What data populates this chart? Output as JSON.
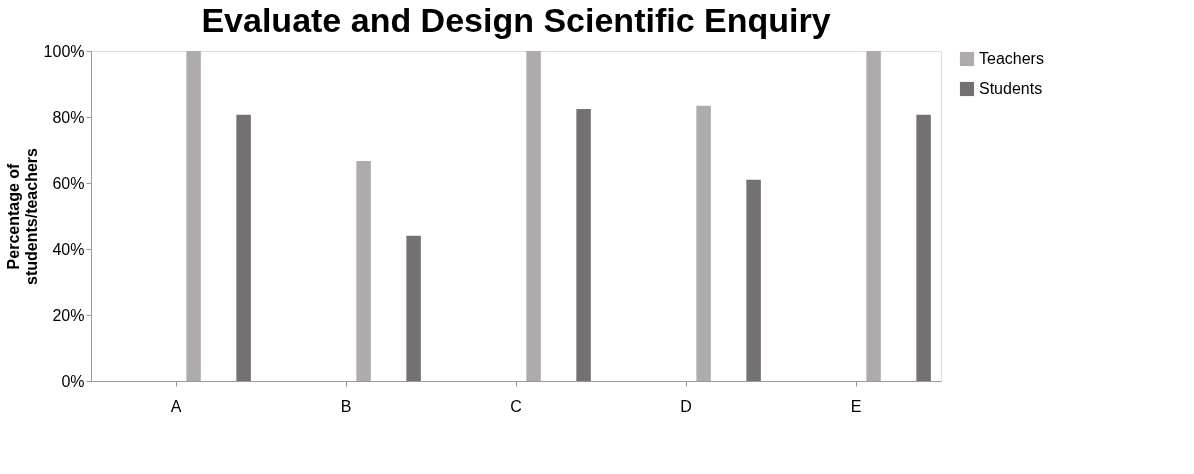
{
  "chart_data": {
    "type": "bar",
    "title": "Evaluate and Design Scientific Enquiry",
    "ylabel": "Percentage of\nstudents/teachers",
    "categories": [
      "A",
      "B",
      "C",
      "D",
      "E"
    ],
    "series": [
      {
        "name": "Teachers",
        "color": "#afabab",
        "values": [
          100,
          66.7,
          100,
          83.4,
          100
        ]
      },
      {
        "name": "Students",
        "color": "#767171",
        "values": [
          80.7,
          44.0,
          82.4,
          61.0,
          80.7
        ]
      }
    ],
    "ylim": [
      0,
      100
    ],
    "yticks": [
      {
        "value": 0,
        "label": "0%"
      },
      {
        "value": 20,
        "label": "20%"
      },
      {
        "value": 40,
        "label": "40%"
      },
      {
        "value": 60,
        "label": "60%"
      },
      {
        "value": 80,
        "label": "80%"
      },
      {
        "value": 100,
        "label": "100%"
      }
    ],
    "grid": false,
    "legend": "right"
  }
}
